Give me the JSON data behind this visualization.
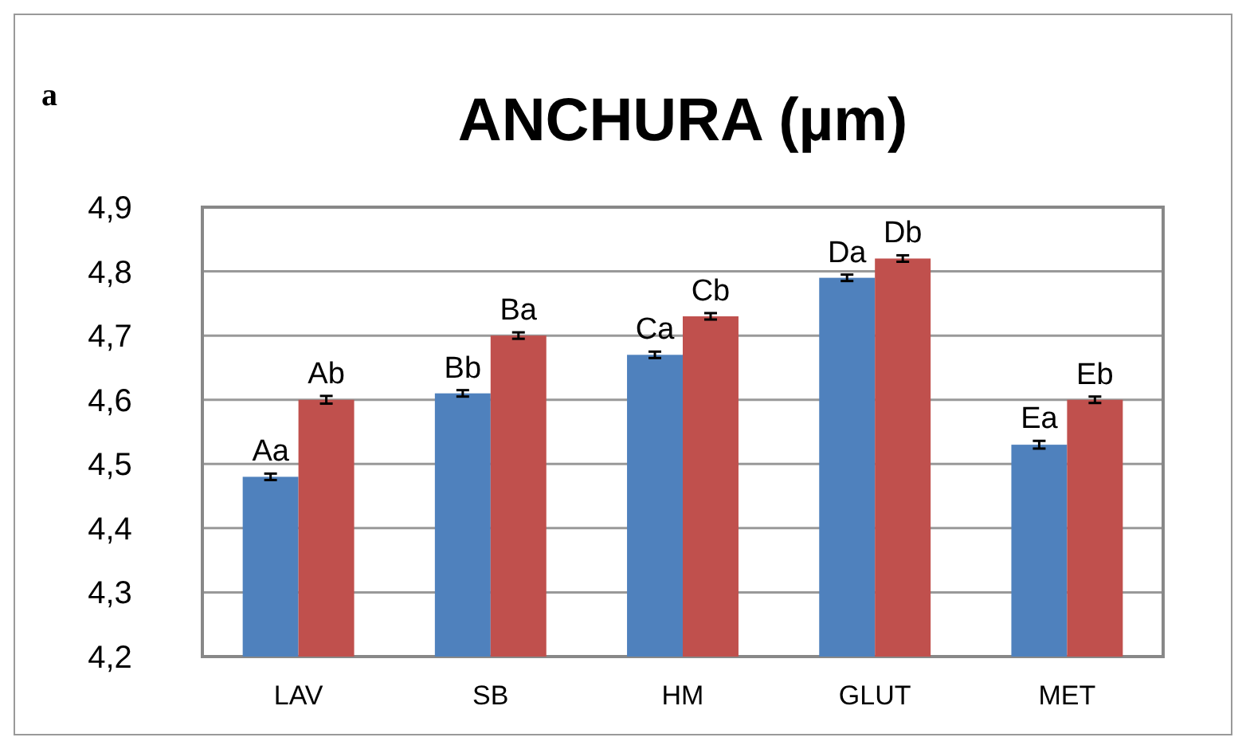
{
  "chart_data": {
    "type": "bar",
    "title": "ANCHURA (µm)",
    "annotations": [
      "a"
    ],
    "categories": [
      "LAV",
      "SB",
      "HM",
      "GLUT",
      "MET"
    ],
    "series": [
      {
        "color": "#4f81bd",
        "values": [
          4.48,
          4.61,
          4.67,
          4.79,
          4.53
        ],
        "errors": [
          0.005,
          0.005,
          0.005,
          0.005,
          0.006
        ],
        "value_labels": [
          "Aa",
          "Bb",
          "Ca",
          "Da",
          "Ea"
        ]
      },
      {
        "color": "#c0504d",
        "values": [
          4.6,
          4.7,
          4.73,
          4.82,
          4.6
        ],
        "errors": [
          0.006,
          0.005,
          0.005,
          0.005,
          0.005
        ],
        "value_labels": [
          "Ab",
          "Ba",
          "Cb",
          "Db",
          "Eb"
        ]
      }
    ],
    "ylim": [
      4.2,
      4.9
    ],
    "yticks": [
      {
        "value": 4.2,
        "label": "4,2"
      },
      {
        "value": 4.3,
        "label": "4,3"
      },
      {
        "value": 4.4,
        "label": "4,4"
      },
      {
        "value": 4.5,
        "label": "4,5"
      },
      {
        "value": 4.6,
        "label": "4,6"
      },
      {
        "value": 4.7,
        "label": "4,7"
      },
      {
        "value": 4.8,
        "label": "4,8"
      },
      {
        "value": 4.9,
        "label": "4,9"
      }
    ],
    "grid": "y"
  }
}
